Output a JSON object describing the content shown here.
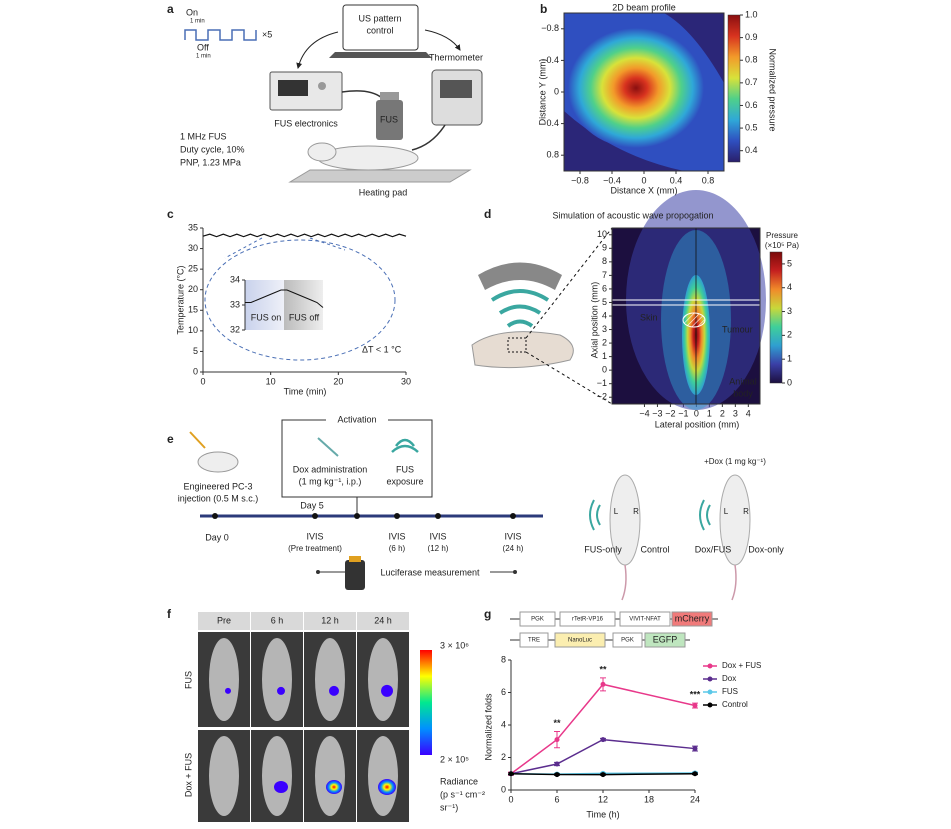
{
  "panel_labels": [
    "a",
    "b",
    "c",
    "d",
    "e",
    "f",
    "g"
  ],
  "panel_a": {
    "on": "On",
    "on_duration": "1 min",
    "off": "Off",
    "off_duration": "1 min",
    "repeat": "×5",
    "controller": [
      "US pattern",
      "control"
    ],
    "thermometer": "Thermometer",
    "electronics": "FUS electronics",
    "transducer": "FUS",
    "parameters": [
      "1 MHz FUS",
      "Duty cycle, 10%",
      "PNP, 1.23 MPa"
    ],
    "heating_pad": "Heating pad"
  },
  "panel_e": {
    "activation": "Activation",
    "dox": [
      "Dox administration",
      "(1 mg kg⁻¹, i.p.)"
    ],
    "fus": [
      "FUS",
      "exposure"
    ],
    "injection": [
      "Engineered PC-3",
      "injection (0.5 M s.c.)"
    ],
    "day0": "Day 0",
    "day5": "Day 5",
    "timepoints": [
      {
        "label": "IVIS",
        "detail": "(Pre treatment)"
      },
      {
        "label": "IVIS",
        "detail": "(6 h)"
      },
      {
        "label": "IVIS",
        "detail": "(12 h)"
      },
      {
        "label": "IVIS",
        "detail": "(24 h)"
      }
    ],
    "luciferase": "Luciferase measurement",
    "dox_dose": "+Dox (1 mg kg⁻¹)",
    "groups": [
      "FUS-only",
      "Control",
      "Dox/FUS",
      "Dox-only"
    ],
    "sides": [
      "L",
      "R",
      "L",
      "R"
    ]
  },
  "panel_f": {
    "columns": [
      "Pre",
      "6 h",
      "12 h",
      "24 h"
    ],
    "rows": [
      "FUS",
      "Dox + FUS"
    ],
    "scale_max": "3 × 10⁶",
    "scale_min": "2 × 10⁵",
    "scale_label": [
      "Radiance",
      "(p s⁻¹ cm⁻²",
      "sr⁻¹)"
    ],
    "colormap": [
      "#3a00ff",
      "#0090ff",
      "#00e890",
      "#ffff00",
      "#ff0000"
    ]
  },
  "panel_g_constructs": {
    "row1": [
      "PGK",
      "rTetR-VP16",
      "VIVIT-NFAT",
      "mCherry"
    ],
    "row2": [
      "TRE",
      "NanoLuc",
      "PGK",
      "EGFP"
    ]
  },
  "chart_data": [
    {
      "type": "heatmap",
      "title": "2D beam profile",
      "xlabel": "Distance X (mm)",
      "ylabel": "Distance Y (mm)",
      "xlim": [
        -1,
        1
      ],
      "ylim": [
        -1,
        1
      ],
      "y_inverted": true,
      "xticks": [
        {
          "value": -0.8,
          "label": "−0.8"
        },
        {
          "value": -0.4,
          "label": "−0.4"
        },
        0,
        0.4,
        0.8
      ],
      "yticks": [
        {
          "value": -0.8,
          "label": "−0.8"
        },
        {
          "value": -0.4,
          "label": "−0.4"
        },
        0,
        0.4,
        0.8
      ],
      "colorbar_label": "Normalized pressure",
      "clim": [
        0.35,
        1
      ],
      "cticks": [
        0.4,
        0.5,
        0.6,
        0.7,
        0.8,
        0.9,
        {
          "value": 1,
          "label": "1.0"
        }
      ],
      "colormap": [
        "#2a1f6b",
        "#2f4fc0",
        "#2fa8d8",
        "#4fd08a",
        "#d8e23a",
        "#f29a2a",
        "#d8331f",
        "#8a0f10"
      ]
    },
    {
      "type": "line",
      "xlabel": "Time (min)",
      "ylabel": "Temperature (°C)",
      "color": "#111111",
      "x": [
        0,
        1,
        2,
        3,
        4,
        5,
        6,
        7,
        8,
        9,
        10,
        11,
        12,
        13,
        14,
        15,
        16,
        17,
        18,
        19,
        20,
        21,
        22,
        23,
        24,
        25,
        26,
        27,
        28,
        29,
        30
      ],
      "values": [
        33.0,
        33.5,
        32.9,
        33.5,
        32.9,
        33.5,
        32.9,
        33.5,
        32.9,
        33.5,
        32.9,
        33.5,
        32.9,
        33.5,
        32.9,
        33.5,
        32.9,
        33.5,
        32.9,
        33.5,
        32.9,
        33.5,
        32.9,
        33.5,
        32.9,
        33.5,
        32.9,
        33.5,
        32.9,
        33.5,
        33.0
      ],
      "xlim": [
        0,
        30
      ],
      "xticks": [
        0,
        10,
        20,
        30
      ],
      "ylim": [
        0,
        35
      ],
      "yticks": [
        0,
        5,
        10,
        15,
        20,
        25,
        30,
        35
      ],
      "inset": {
        "x": [
          0,
          1,
          2,
          3,
          4,
          5,
          6,
          7,
          8,
          9,
          10,
          11,
          12,
          13
        ],
        "values": [
          33.1,
          33.1,
          33.2,
          33.3,
          33.4,
          33.5,
          33.6,
          33.6,
          33.5,
          33.4,
          33.3,
          33.2,
          33.1,
          32.9
        ],
        "xlim": [
          0,
          13
        ],
        "ylim": [
          32,
          34
        ],
        "yticks": [
          32,
          33,
          34
        ],
        "labels": [
          "FUS on",
          "FUS off"
        ]
      },
      "annotation": "ΔT < 1 °C"
    },
    {
      "type": "heatmap",
      "title": "Simulation of acoustic wave propogation",
      "xlabel": "Lateral position (mm)",
      "ylabel": "Axial position (mm)",
      "xlim": [
        -6.5,
        4.9
      ],
      "ylim": [
        -2.5,
        10.5
      ],
      "y_inverted": false,
      "xticks": [
        {
          "value": -4,
          "label": "−4"
        },
        {
          "value": -3,
          "label": "−3"
        },
        {
          "value": -2,
          "label": "−2"
        },
        {
          "value": -1,
          "label": "−1"
        },
        0,
        1,
        2,
        3,
        4
      ],
      "yticks": [
        {
          "value": -2,
          "label": "−2"
        },
        {
          "value": -1,
          "label": "−1"
        },
        0,
        1,
        2,
        3,
        4,
        5,
        6,
        7,
        8,
        9,
        10
      ],
      "colorbar_label": [
        "Pressure",
        "(×10⁵ Pa)"
      ],
      "clim": [
        0,
        5.5
      ],
      "cticks": [
        0,
        1,
        2,
        3,
        4,
        5
      ],
      "colormap": [
        "#1c0f3f",
        "#3a3fa6",
        "#2f9fd0",
        "#3fcf9a",
        "#c8d83a",
        "#f08a2a",
        "#c41f1f",
        "#7a0a0a"
      ],
      "annotations": [
        "Skin",
        "Tumour",
        "Animal",
        "body"
      ]
    },
    {
      "type": "line",
      "xlabel": "Time (h)",
      "ylabel": "Normalized folds",
      "legend": "right",
      "x": [
        0,
        6,
        12,
        24
      ],
      "xlim": [
        0,
        24
      ],
      "xticks": [
        0,
        6,
        12,
        18,
        24
      ],
      "ylim": [
        0,
        8
      ],
      "yticks": [
        0,
        2,
        4,
        6,
        8
      ],
      "series": [
        {
          "name": "Dox + FUS",
          "color": "#e8388a",
          "values": [
            1,
            3.1,
            6.5,
            5.2
          ],
          "errors": [
            0.1,
            0.5,
            0.4,
            0.15
          ]
        },
        {
          "name": "Dox",
          "color": "#5b2d8e",
          "values": [
            1,
            1.6,
            3.1,
            2.55
          ],
          "errors": [
            0.05,
            0.1,
            0.08,
            0.15
          ]
        },
        {
          "name": "FUS",
          "color": "#5bc8e8",
          "values": [
            1,
            0.98,
            1.02,
            1.05
          ],
          "errors": [
            0.05,
            0.05,
            0.05,
            0.05
          ]
        },
        {
          "name": "Control",
          "color": "#000000",
          "values": [
            1,
            0.95,
            0.95,
            1.0
          ],
          "errors": [
            0.05,
            0.04,
            0.04,
            0.05
          ]
        }
      ],
      "annotations": [
        {
          "x": 6,
          "label": "**"
        },
        {
          "x": 12,
          "label": "**"
        },
        {
          "x": 24,
          "label": "***"
        }
      ]
    }
  ]
}
